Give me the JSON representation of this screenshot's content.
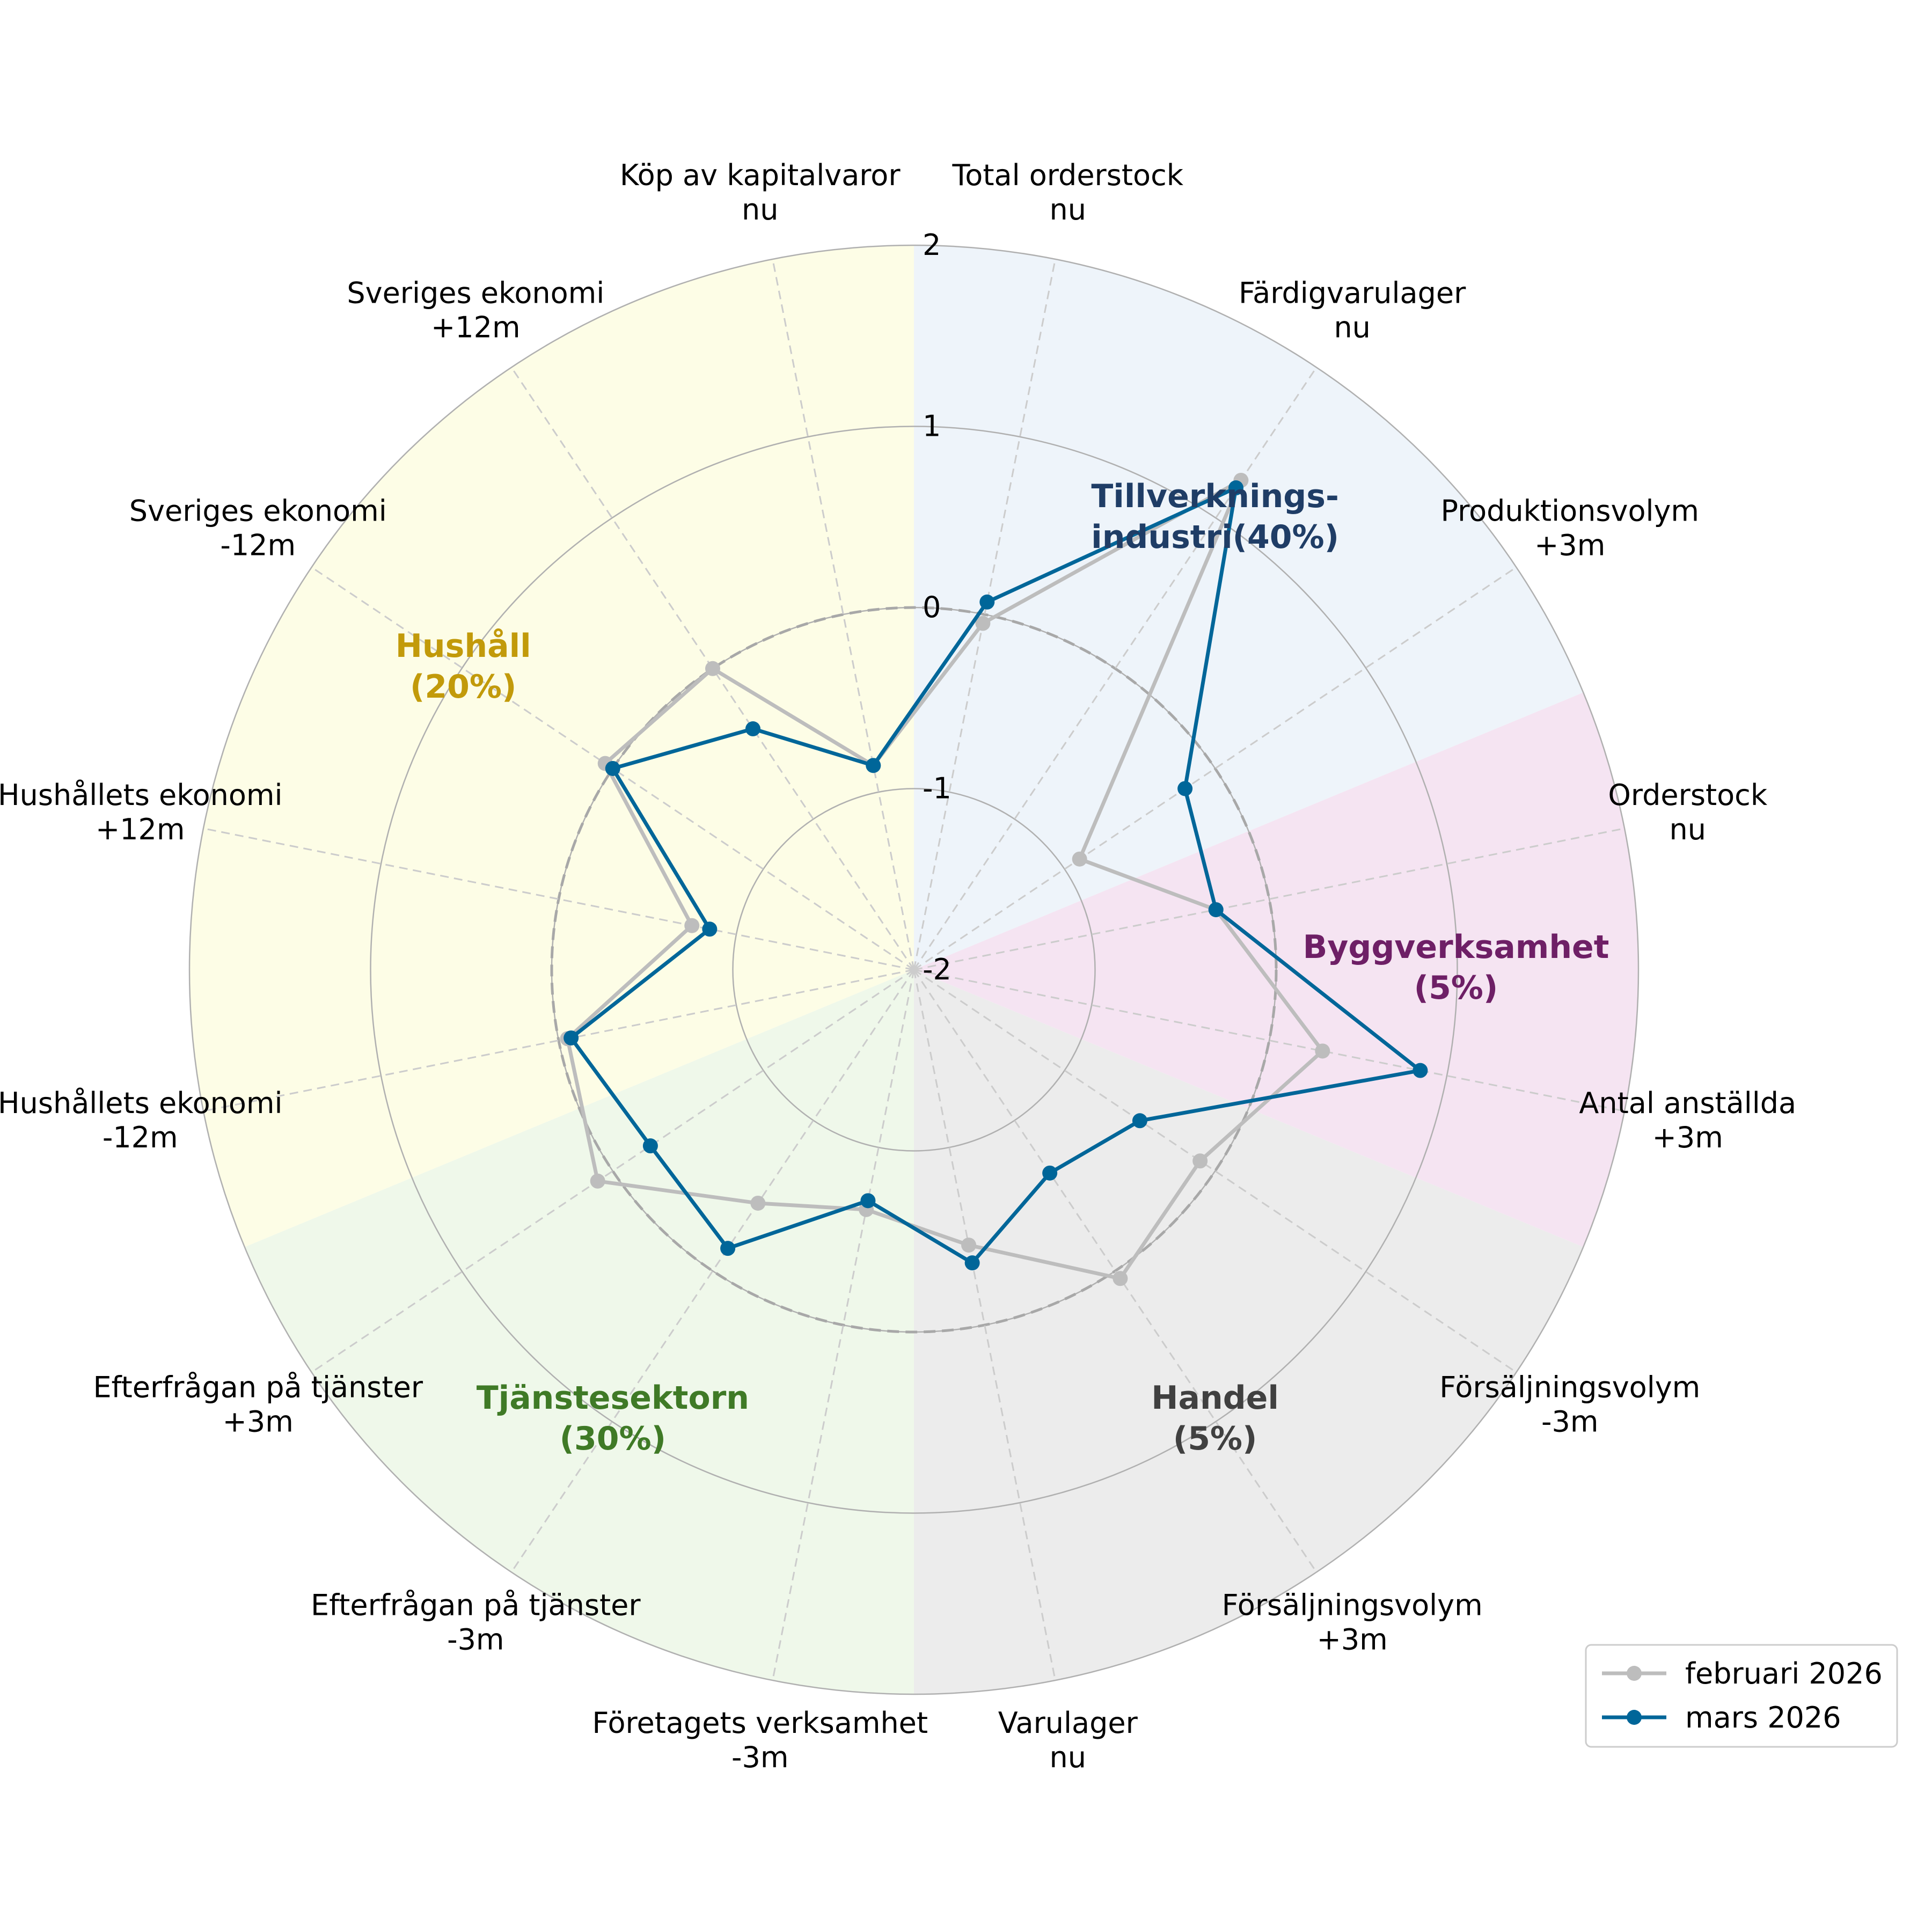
{
  "chart_data": {
    "type": "radar",
    "r_range": [
      -2,
      2
    ],
    "r_ticks": [
      "2",
      "1",
      "0",
      "-1",
      "-2"
    ],
    "r_tick_values": [
      2,
      1,
      0,
      -1,
      -2
    ],
    "reference_ring": 0,
    "grid": true,
    "legend_position": "bottom-right",
    "axes": [
      {
        "name": "Total orderstock",
        "sub": "nu"
      },
      {
        "name": "Färdigvarulager",
        "sub": "nu"
      },
      {
        "name": "Produktionsvolym",
        "sub": "+3m"
      },
      {
        "name": "Orderstock",
        "sub": "nu"
      },
      {
        "name": "Antal anställda",
        "sub": "+3m"
      },
      {
        "name": "Försäljningsvolym",
        "sub": "-3m"
      },
      {
        "name": "Försäljningsvolym",
        "sub": "+3m"
      },
      {
        "name": "Varulager",
        "sub": "nu"
      },
      {
        "name": "Företagets verksamhet",
        "sub": "-3m"
      },
      {
        "name": "Efterfrågan på tjänster",
        "sub": "-3m"
      },
      {
        "name": "Efterfrågan på tjänster",
        "sub": "+3m"
      },
      {
        "name": "Hushållets ekonomi",
        "sub": "-12m"
      },
      {
        "name": "Hushållets ekonomi",
        "sub": "+12m"
      },
      {
        "name": "Sveriges ekonomi",
        "sub": "-12m"
      },
      {
        "name": "Sveriges ekonomi",
        "sub": "+12m"
      },
      {
        "name": "Köp av kapitalvaror",
        "sub": "nu"
      }
    ],
    "sectors": [
      {
        "line1": "Tillverknings-",
        "line2": "industri(40%)",
        "color": "#1f3d66",
        "fill": "#eef4fa",
        "axis_from": 0,
        "axis_to": 2
      },
      {
        "line1": "Byggverksamhet",
        "line2": "(5%)",
        "color": "#6e1f66",
        "fill": "#f5e4f2",
        "axis_from": 3,
        "axis_to": 4
      },
      {
        "line1": "Handel",
        "line2": "(5%)",
        "color": "#404040",
        "fill": "#ececec",
        "axis_from": 5,
        "axis_to": 7
      },
      {
        "line1": "Tjänstesektorn",
        "line2": "(30%)",
        "color": "#3f7a26",
        "fill": "#eff8ea",
        "axis_from": 8,
        "axis_to": 10
      },
      {
        "line1": "Hushåll",
        "line2": "(20%)",
        "color": "#c29a0a",
        "fill": "#fdfde6",
        "axis_from": 11,
        "axis_to": 15
      }
    ],
    "series": [
      {
        "name": "februari 2026",
        "color": "#bdbdbd",
        "values": [
          -0.05,
          1.25,
          -0.9,
          -0.3,
          0.3,
          -0.1,
          0.05,
          -0.45,
          -0.65,
          -0.45,
          0.1,
          -0.05,
          -0.75,
          0.05,
          0.0,
          -0.85
        ]
      },
      {
        "name": "mars 2026",
        "color": "#006699",
        "values": [
          0.07,
          1.2,
          -0.2,
          -0.3,
          0.85,
          -0.5,
          -0.65,
          -0.35,
          -0.7,
          -0.15,
          -0.25,
          -0.07,
          -0.85,
          0.0,
          -0.4,
          -0.85
        ]
      }
    ]
  }
}
